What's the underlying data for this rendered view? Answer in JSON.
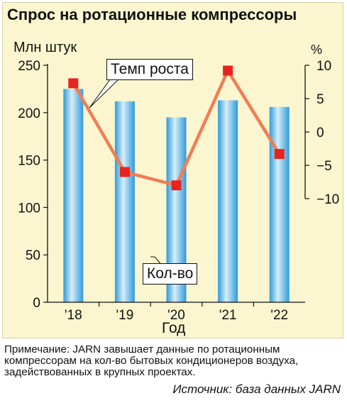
{
  "chart_data": {
    "type": "bar",
    "title": "Спрос на ротационные компрессоры",
    "ylabel": "Млн штук",
    "y2label": "%",
    "xlabel": "Год",
    "categories": [
      "'18",
      "'19",
      "'20",
      "'21",
      "'22"
    ],
    "ylim": [
      0,
      250
    ],
    "yticks": [
      0,
      50,
      100,
      150,
      200,
      250
    ],
    "y2lim": [
      -12,
      10
    ],
    "y2ticks": [
      10,
      5,
      0,
      -5,
      -10
    ],
    "y2ticklabels": [
      "10",
      "5",
      "0",
      "−5",
      "−10"
    ],
    "series": [
      {
        "name": "Кол-во",
        "type": "bar",
        "axis": "left",
        "values": [
          225,
          212,
          195,
          213,
          206
        ]
      },
      {
        "name": "Темп роста",
        "type": "line",
        "axis": "right",
        "values": [
          7.3,
          -6.0,
          -8.0,
          9.2,
          -3.3
        ]
      }
    ],
    "colors": {
      "bar": "#2f9ad8",
      "bar_light": "#d6eefb",
      "line": "#f07d56",
      "marker": "#e8231d",
      "background": "#fbf6cf"
    }
  },
  "note": "Примечание: JARN завышает данные по ротационным компрессорам на кол-во бытовых кондиционеров воздуха, задействованных в крупных проектах.",
  "source": "Источник: база данных JARN"
}
